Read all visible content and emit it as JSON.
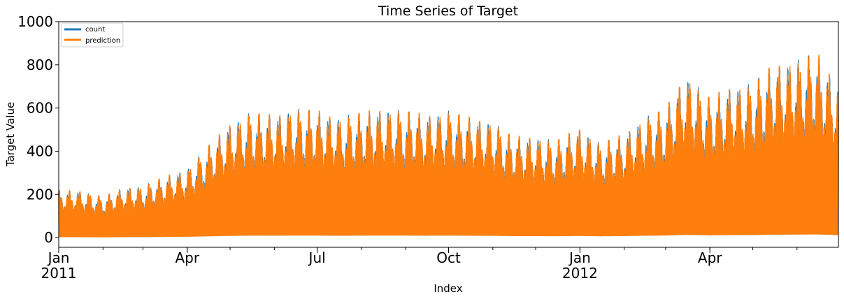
{
  "chart_data": {
    "type": "line",
    "title": "Time Series of Target",
    "xlabel": "Index",
    "ylabel": "Target Value",
    "ylim": [
      -45,
      1000
    ],
    "y_ticks": [
      0,
      200,
      400,
      600,
      800,
      1000
    ],
    "x_range": [
      "2011-01-01",
      "2012-06-30"
    ],
    "x_ticks": [
      {
        "date": "2011-01-01",
        "label": "Jan",
        "year": "2011"
      },
      {
        "date": "2011-04-01",
        "label": "Apr",
        "year": ""
      },
      {
        "date": "2011-07-01",
        "label": "Jul",
        "year": ""
      },
      {
        "date": "2011-10-01",
        "label": "Oct",
        "year": ""
      },
      {
        "date": "2012-01-01",
        "label": "Jan",
        "year": "2012"
      },
      {
        "date": "2012-04-01",
        "label": "Apr",
        "year": ""
      }
    ],
    "grid": false,
    "legend_position": "top-left",
    "series": [
      {
        "name": "count",
        "color": "#1f77b4",
        "x": [
          "2011-01-15",
          "2011-02-01",
          "2011-02-15",
          "2011-03-01",
          "2011-03-15",
          "2011-04-01",
          "2011-04-15",
          "2011-05-01",
          "2011-05-15",
          "2011-06-01",
          "2011-06-15",
          "2011-07-01",
          "2011-07-15",
          "2011-08-01",
          "2011-08-15",
          "2011-09-01",
          "2011-09-15",
          "2011-10-01",
          "2011-10-15",
          "2011-11-01",
          "2011-11-15",
          "2011-12-01",
          "2011-12-15",
          "2012-01-01",
          "2012-01-15",
          "2012-02-01",
          "2012-02-15",
          "2012-03-01",
          "2012-03-15",
          "2012-04-01",
          "2012-04-15",
          "2012-05-01",
          "2012-05-15",
          "2012-06-01",
          "2012-06-15",
          "2012-06-30"
        ],
        "peak": [
          220,
          190,
          230,
          240,
          280,
          320,
          420,
          530,
          580,
          570,
          600,
          590,
          560,
          580,
          600,
          590,
          570,
          590,
          560,
          540,
          470,
          470,
          450,
          510,
          440,
          480,
          560,
          600,
          760,
          650,
          700,
          720,
          800,
          830,
          860,
          700
        ]
      },
      {
        "name": "prediction",
        "color": "#ff7f0e",
        "x": [
          "2011-01-15",
          "2011-02-01",
          "2011-02-15",
          "2011-03-01",
          "2011-03-15",
          "2011-04-01",
          "2011-04-15",
          "2011-05-01",
          "2011-05-15",
          "2011-06-01",
          "2011-06-15",
          "2011-07-01",
          "2011-07-15",
          "2011-08-01",
          "2011-08-15",
          "2011-09-01",
          "2011-09-15",
          "2011-10-01",
          "2011-10-15",
          "2011-11-01",
          "2011-11-15",
          "2011-12-01",
          "2011-12-15",
          "2012-01-01",
          "2012-01-15",
          "2012-02-01",
          "2012-02-15",
          "2012-03-01",
          "2012-03-15",
          "2012-04-01",
          "2012-04-15",
          "2012-05-01",
          "2012-05-15",
          "2012-06-01",
          "2012-06-15",
          "2012-06-30"
        ],
        "peak": [
          220,
          190,
          230,
          240,
          280,
          320,
          420,
          530,
          580,
          570,
          600,
          590,
          560,
          580,
          600,
          590,
          570,
          590,
          560,
          540,
          470,
          470,
          450,
          510,
          440,
          480,
          560,
          600,
          760,
          650,
          700,
          720,
          800,
          830,
          860,
          700
        ]
      }
    ]
  }
}
